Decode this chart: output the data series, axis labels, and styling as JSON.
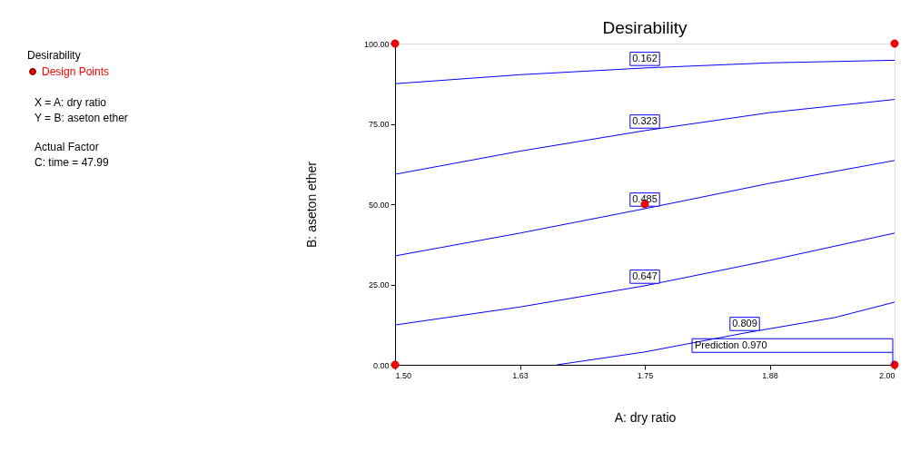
{
  "chart_data": {
    "type": "line",
    "title": "Desirability",
    "xlabel": "A: dry ratio",
    "ylabel": "B: aseton ether",
    "legend_title": "Desirability",
    "legend": "left",
    "grid": false,
    "marker": "none",
    "xlim": [
      1.5,
      2.0
    ],
    "xticks": [
      {
        "value": 1.5,
        "label": "1.50"
      },
      {
        "value": 1.625,
        "label": "1.63"
      },
      {
        "value": 1.75,
        "label": "1.75"
      },
      {
        "value": 1.875,
        "label": "1.88"
      },
      {
        "value": 2.0,
        "label": "2.00"
      }
    ],
    "ylim": [
      0,
      100
    ],
    "yticks": [
      {
        "value": 0,
        "label": "0.00"
      },
      {
        "value": 25,
        "label": "25.00"
      },
      {
        "value": 50,
        "label": "50.00"
      },
      {
        "value": 75,
        "label": "75.00"
      },
      {
        "value": 100,
        "label": "100.00"
      }
    ],
    "series": [
      {
        "name": "0.162",
        "color": "#0000ff",
        "x": [
          1.5,
          1.625,
          1.75,
          1.875,
          2.0
        ],
        "values": [
          87.5,
          90.3,
          92.4,
          94.0,
          94.8
        ]
      },
      {
        "name": "0.323",
        "color": "#0000ff",
        "x": [
          1.5,
          1.625,
          1.75,
          1.875,
          2.0
        ],
        "values": [
          59.3,
          66.5,
          72.9,
          78.5,
          82.6
        ]
      },
      {
        "name": "0.485",
        "color": "#0000ff",
        "x": [
          1.5,
          1.625,
          1.75,
          1.875,
          2.0
        ],
        "values": [
          33.9,
          41.0,
          48.6,
          56.5,
          63.6
        ]
      },
      {
        "name": "0.647",
        "color": "#0000ff",
        "x": [
          1.5,
          1.625,
          1.75,
          1.875,
          2.0
        ],
        "values": [
          12.4,
          18.0,
          24.6,
          32.5,
          41.0
        ]
      },
      {
        "name": "0.809",
        "color": "#0000ff",
        "x": [
          1.662,
          1.75,
          1.85,
          1.94,
          2.0
        ],
        "values": [
          0,
          4.0,
          9.9,
          14.7,
          19.5
        ]
      },
      {
        "name": "Design Points",
        "type": "scatter",
        "marker": "circle",
        "color": "#ff0000",
        "x": [
          1.5,
          2.0,
          1.75,
          1.5,
          2.0
        ],
        "values": [
          100,
          100,
          50,
          0,
          0
        ]
      }
    ],
    "annotations": [
      "X = A: dry ratio",
      "Y = B: aseton ether",
      "Actual Factor",
      "C: time = 47.99",
      {
        "text": "Prediction 0.970",
        "x": 1.8,
        "y": 6
      }
    ]
  }
}
